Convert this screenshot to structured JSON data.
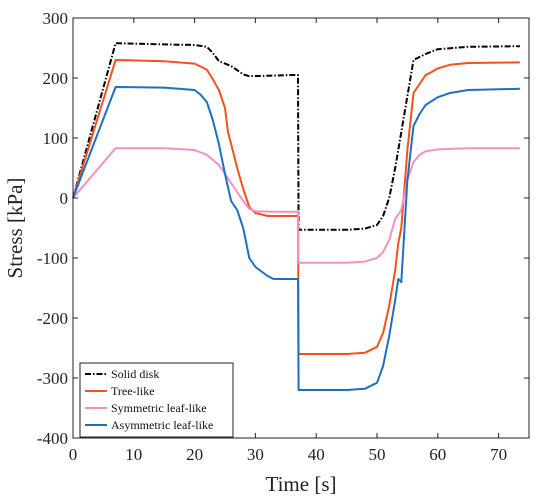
{
  "chart_data": {
    "type": "line",
    "title": "",
    "xlabel": "Time [s]",
    "ylabel": "Stress [kPa]",
    "xlim": [
      0,
      75
    ],
    "ylim": [
      -400,
      300
    ],
    "xticks": [
      0,
      10,
      20,
      30,
      40,
      50,
      60,
      70
    ],
    "yticks": [
      -400,
      -300,
      -200,
      -100,
      0,
      100,
      200,
      300
    ],
    "grid": false,
    "legend_position": "bottom-left",
    "series": [
      {
        "name": "Solid disk",
        "color": "#000000",
        "style": "dash-dot",
        "points": [
          [
            0,
            0
          ],
          [
            7,
            258
          ],
          [
            15,
            256
          ],
          [
            20,
            255
          ],
          [
            22,
            252
          ],
          [
            23,
            242
          ],
          [
            24,
            228
          ],
          [
            26,
            220
          ],
          [
            28,
            206
          ],
          [
            29,
            203
          ],
          [
            33,
            204
          ],
          [
            36,
            205
          ],
          [
            37,
            205
          ],
          [
            37.1,
            -53
          ],
          [
            45,
            -53
          ],
          [
            48,
            -51
          ],
          [
            50,
            -45
          ],
          [
            51,
            -30
          ],
          [
            52,
            0
          ],
          [
            53,
            50
          ],
          [
            54,
            110
          ],
          [
            55,
            170
          ],
          [
            56,
            230
          ],
          [
            58,
            240
          ],
          [
            60,
            248
          ],
          [
            65,
            252
          ],
          [
            73.5,
            253
          ]
        ]
      },
      {
        "name": "Tree-like",
        "color": "#f4511e",
        "style": "solid",
        "points": [
          [
            0,
            0
          ],
          [
            7,
            230
          ],
          [
            15,
            228
          ],
          [
            20,
            224
          ],
          [
            22,
            214
          ],
          [
            23,
            198
          ],
          [
            24,
            180
          ],
          [
            25,
            150
          ],
          [
            25.5,
            110
          ],
          [
            26,
            90
          ],
          [
            27,
            50
          ],
          [
            28,
            15
          ],
          [
            29,
            -15
          ],
          [
            30,
            -25
          ],
          [
            32,
            -30
          ],
          [
            37,
            -30
          ],
          [
            37.1,
            -260
          ],
          [
            45,
            -260
          ],
          [
            48,
            -258
          ],
          [
            50,
            -248
          ],
          [
            51,
            -225
          ],
          [
            52,
            -180
          ],
          [
            53,
            -120
          ],
          [
            53.5,
            -75
          ],
          [
            54,
            -50
          ],
          [
            55,
            80
          ],
          [
            56,
            175
          ],
          [
            57,
            190
          ],
          [
            58,
            205
          ],
          [
            59,
            210
          ],
          [
            60,
            216
          ],
          [
            62,
            222
          ],
          [
            65,
            225
          ],
          [
            73.5,
            226
          ]
        ]
      },
      {
        "name": "Symmetric leaf-like",
        "color": "#f48fc4",
        "style": "solid",
        "points": [
          [
            0,
            0
          ],
          [
            7,
            83
          ],
          [
            15,
            83
          ],
          [
            20,
            80
          ],
          [
            22,
            72
          ],
          [
            24,
            55
          ],
          [
            25,
            40
          ],
          [
            26,
            25
          ],
          [
            27,
            10
          ],
          [
            28,
            -5
          ],
          [
            29,
            -18
          ],
          [
            30,
            -22
          ],
          [
            33,
            -23
          ],
          [
            37,
            -23
          ],
          [
            37.1,
            -108
          ],
          [
            45,
            -108
          ],
          [
            48,
            -106
          ],
          [
            50,
            -100
          ],
          [
            51,
            -90
          ],
          [
            52,
            -70
          ],
          [
            53,
            -35
          ],
          [
            54,
            -20
          ],
          [
            55,
            30
          ],
          [
            56,
            60
          ],
          [
            57,
            72
          ],
          [
            58,
            78
          ],
          [
            60,
            81
          ],
          [
            65,
            83
          ],
          [
            73.5,
            83
          ]
        ]
      },
      {
        "name": "Asymmetric leaf-like",
        "color": "#1f6fbf",
        "style": "solid",
        "points": [
          [
            0,
            0
          ],
          [
            7,
            185
          ],
          [
            15,
            184
          ],
          [
            20,
            180
          ],
          [
            21,
            172
          ],
          [
            22,
            160
          ],
          [
            23,
            130
          ],
          [
            24,
            90
          ],
          [
            25,
            40
          ],
          [
            26,
            -5
          ],
          [
            27,
            -20
          ],
          [
            28,
            -50
          ],
          [
            29,
            -100
          ],
          [
            30,
            -115
          ],
          [
            32,
            -130
          ],
          [
            33,
            -135
          ],
          [
            37,
            -135
          ],
          [
            37.1,
            -320
          ],
          [
            45,
            -320
          ],
          [
            48,
            -318
          ],
          [
            50,
            -308
          ],
          [
            51,
            -280
          ],
          [
            52,
            -230
          ],
          [
            53,
            -170
          ],
          [
            53.5,
            -135
          ],
          [
            54,
            -140
          ],
          [
            55,
            30
          ],
          [
            56,
            120
          ],
          [
            57,
            140
          ],
          [
            58,
            155
          ],
          [
            60,
            168
          ],
          [
            62,
            175
          ],
          [
            65,
            180
          ],
          [
            73.5,
            182
          ]
        ]
      }
    ]
  }
}
